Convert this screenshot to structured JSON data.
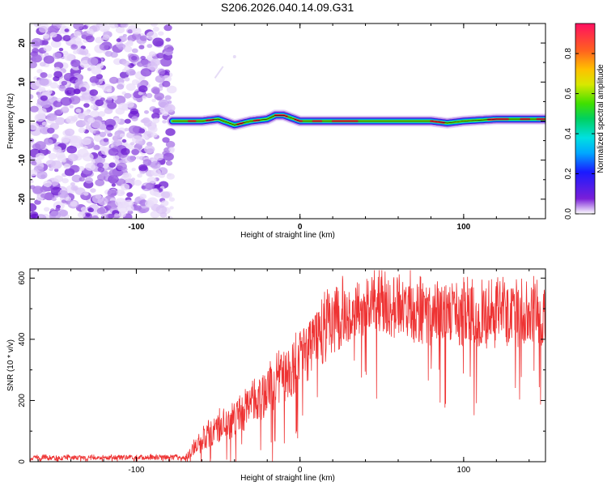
{
  "title": "S206.2026.040.14.09.G31",
  "chart_data": [
    {
      "type": "heatmap",
      "xlabel": "Height of straight line (km)",
      "ylabel": "Frequency (Hz)",
      "xlim": [
        -165,
        150
      ],
      "ylim": [
        -25,
        25
      ],
      "xticks": [
        -100,
        0,
        100
      ],
      "yticks": [
        -20,
        -10,
        0,
        10,
        20
      ],
      "colorbar": {
        "label": "Normalized spectral amplitude",
        "range": [
          0,
          0.95
        ],
        "ticks": [
          0.0,
          0.2,
          0.4,
          0.6,
          0.8
        ]
      },
      "noise_region_x": [
        -165,
        -78
      ],
      "signal_ridge": {
        "x": [
          -78,
          -60,
          -50,
          -40,
          -30,
          -20,
          -15,
          -10,
          0,
          20,
          40,
          60,
          80,
          90,
          100,
          120,
          140,
          150
        ],
        "freq_hz": [
          0,
          0,
          0.5,
          -1,
          0,
          0.5,
          1.5,
          1.5,
          0,
          0,
          0,
          0,
          0,
          -0.5,
          0,
          0.5,
          0.5,
          0.5
        ]
      }
    },
    {
      "type": "line",
      "xlabel": "Height of straight line (km)",
      "ylabel": "SNR (10 * v/v)",
      "xlim": [
        -165,
        150
      ],
      "ylim": [
        0,
        630
      ],
      "xticks": [
        -100,
        0,
        100
      ],
      "yticks": [
        0,
        200,
        400,
        600
      ],
      "color": "#ee3333",
      "envelope": {
        "x": [
          -165,
          -70,
          -65,
          -55,
          -45,
          -35,
          -25,
          -15,
          -5,
          5,
          15,
          25,
          35,
          45,
          55,
          75,
          100,
          120,
          150
        ],
        "mean": [
          12,
          14,
          40,
          90,
          120,
          160,
          200,
          250,
          300,
          360,
          420,
          470,
          500,
          510,
          500,
          480,
          470,
          470,
          470
        ],
        "spread": [
          8,
          8,
          25,
          45,
          55,
          60,
          70,
          80,
          90,
          100,
          100,
          100,
          100,
          100,
          100,
          100,
          100,
          100,
          100
        ]
      }
    }
  ]
}
